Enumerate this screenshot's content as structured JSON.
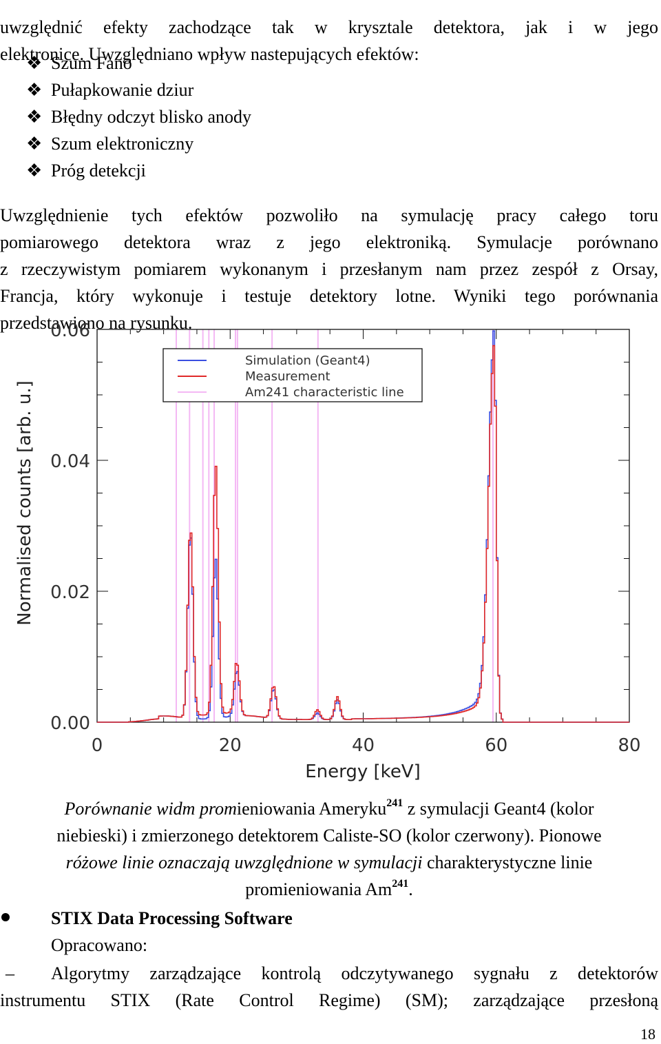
{
  "text": {
    "intro_line1": "uwzględnić efekty zachodzące tak w krysztale detektora, jak i w jego",
    "intro_line2": "elektronice. Uwzględniano wpływ nastepujących efektów:",
    "effects": [
      "Szum Fano",
      "Pułapkowanie dziur",
      "Błędny odczyt blisko anody",
      "Szum elektroniczny",
      "Próg detekcji"
    ],
    "para_line1": "Uwzględnienie tych efektów pozwoliło na symulację pracy całego toru",
    "para_line2": "pomiarowego detektora wraz z jego elektroniką. Symulacje porównano",
    "para_line3": "z rzeczywistym pomiarem wykonanym i przesłanym nam przez zespół z Orsay,",
    "para_line4": "Francja, który wykonuje i testuje detektory lotne. Wyniki tego porównania",
    "para_line5": "przedstawiono na rysunku."
  },
  "caption": {
    "l1_italic": "Porównanie widm prom",
    "l1_rest": "ieniowania Ameryku",
    "l1_sup": "241",
    "l1_end": " z symulacji Geant4 (kolor",
    "l2": "niebieski) i zmierzonego detektorem Caliste-SO (kolor czerwony). Pionowe",
    "l3_italic": "różowe linie oznaczają uwzględnione w symulacji",
    "l3_rest": " charakterystyczne linie",
    "l4": "promieniowania Am",
    "l4_sup": "241",
    "l4_end": "."
  },
  "section": {
    "title": "STIX Data Processing Software",
    "developed": "Opracowano:",
    "dash_line1": "Algorytmy zarządzające kontrolą odczytywanego sygnału z detektorów",
    "dash_line2": "instrumentu STIX (Rate Control Regime) (SM); zarządzające przesłoną",
    "page_number": "18"
  },
  "chart_data": {
    "type": "line",
    "xlabel": "Energy [keV]",
    "ylabel": "Normalised counts [arb. u.]",
    "xlim": [
      0,
      80
    ],
    "ylim": [
      0,
      0.06
    ],
    "x_ticks": [
      "0",
      "20",
      "40",
      "60",
      "80"
    ],
    "y_ticks": [
      "0.00",
      "0.02",
      "0.04",
      "0.06"
    ],
    "legend": [
      "Simulation (Geant4)",
      "Measurement",
      "Am241 characteristic line"
    ],
    "legend_position": "top-left",
    "colors": {
      "simulation": "#3a4ee0",
      "measurement": "#e02828",
      "lines": "#f4b8f4"
    },
    "characteristic_lines_kev": [
      11.9,
      13.9,
      15.9,
      16.8,
      17.6,
      20.8,
      21.1,
      26.3,
      33.2,
      59.5
    ],
    "peaks": [
      {
        "x": 13.9,
        "sim": 0.0285,
        "meas": 0.0293
      },
      {
        "x": 17.7,
        "sim": 0.0245,
        "meas": 0.0382
      },
      {
        "x": 20.9,
        "sim": 0.007,
        "meas": 0.008
      },
      {
        "x": 26.4,
        "sim": 0.0045,
        "meas": 0.005
      },
      {
        "x": 33.0,
        "sim": 0.001,
        "meas": 0.0015
      },
      {
        "x": 36.0,
        "sim": 0.003,
        "meas": 0.0035
      },
      {
        "x": 59.6,
        "sim": 0.0545,
        "meas": 0.0535
      }
    ]
  }
}
